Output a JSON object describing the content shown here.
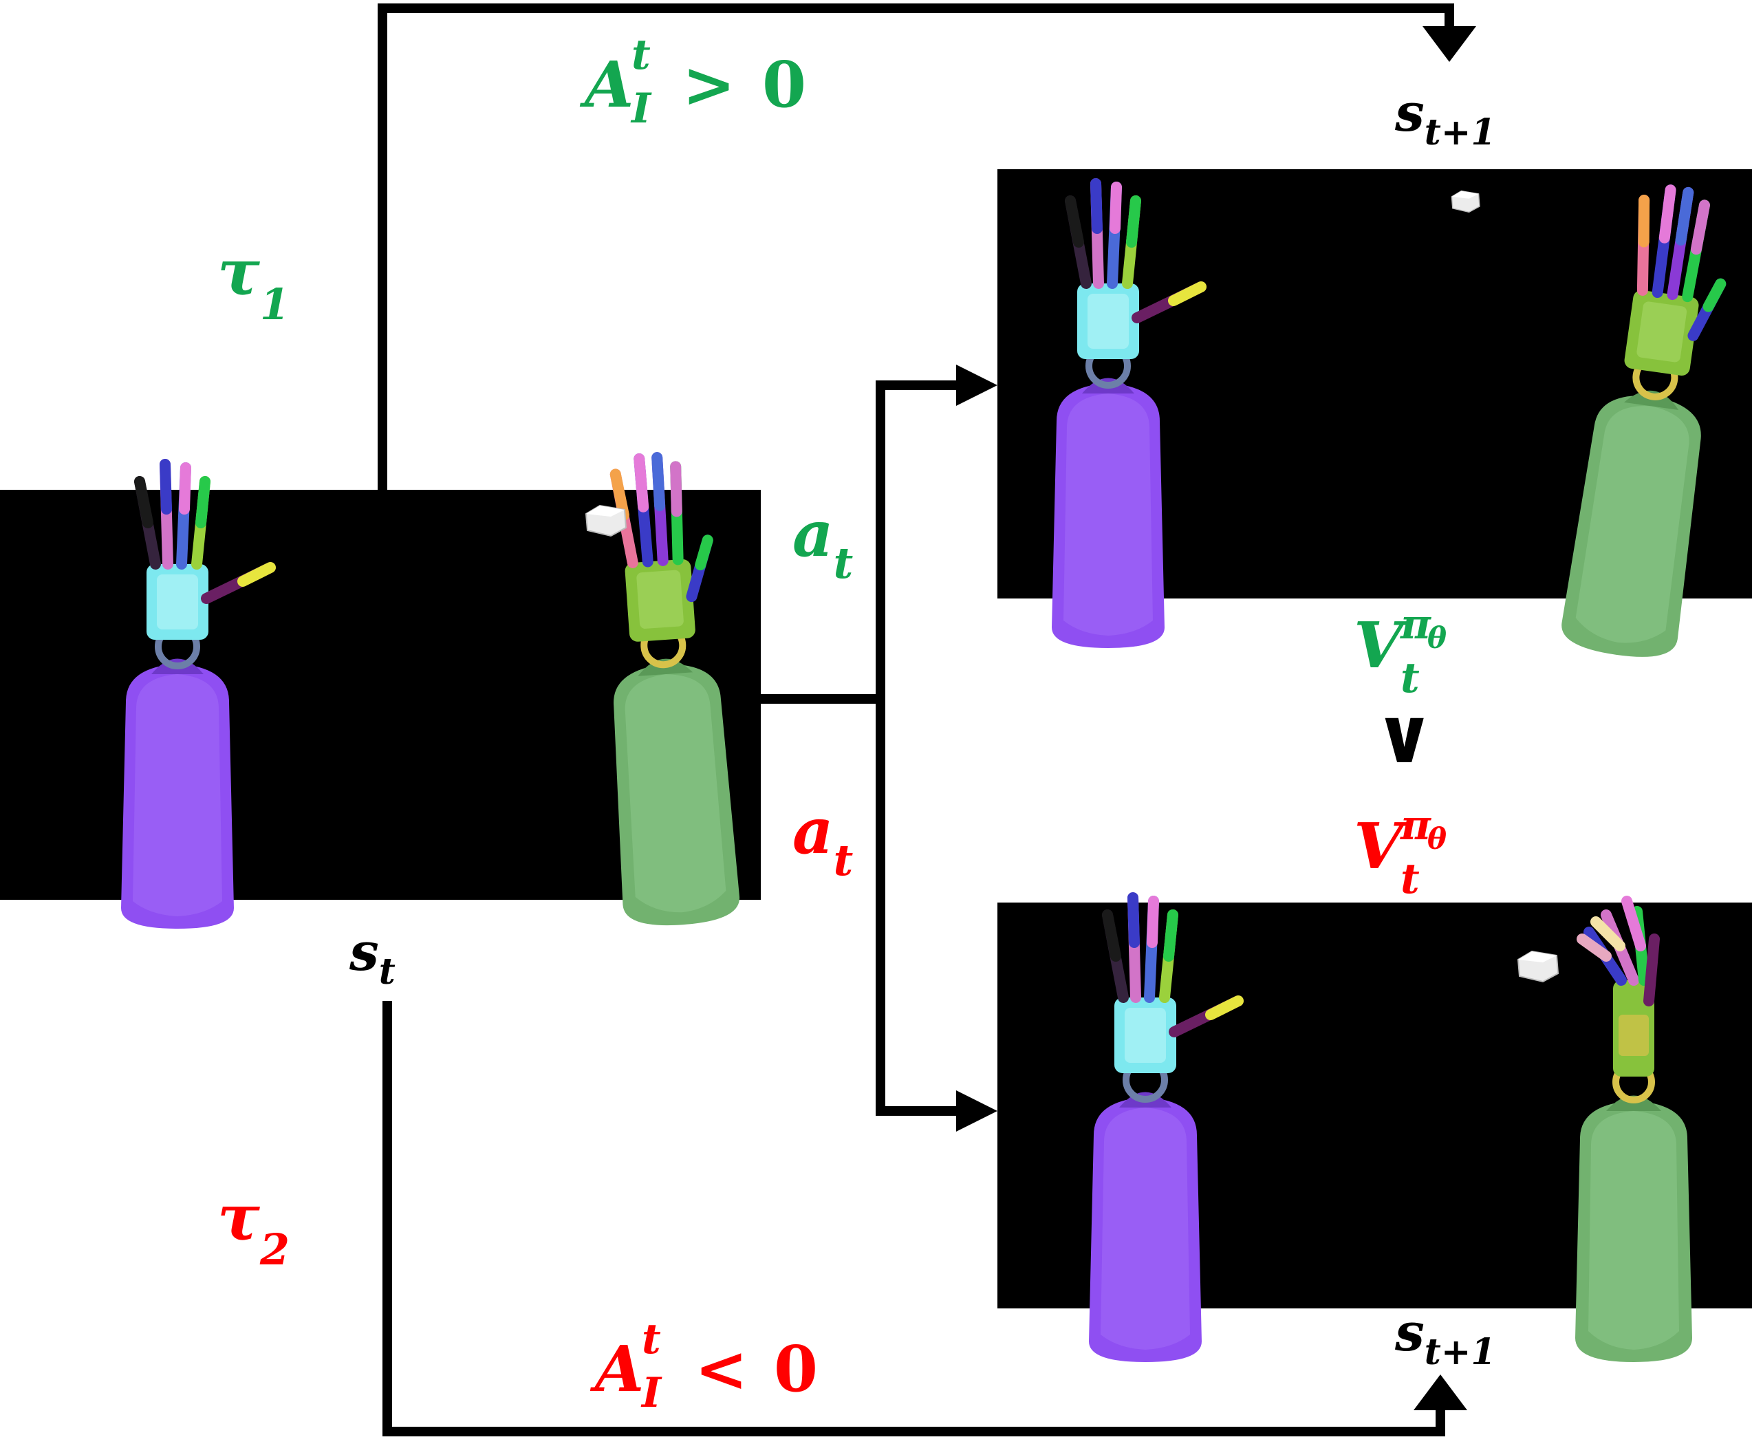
{
  "colors": {
    "good": "#13a650",
    "bad": "#ff0000",
    "ink": "#000000",
    "panel": "#000000",
    "left_body": "#8f4ff2",
    "right_body": "#72b26f",
    "left_palm": "#7de8ef",
    "right_palm": "#87c23c",
    "cube": "#ececec"
  },
  "panels": {
    "current": {
      "state_label": {
        "base": "s",
        "sub": "t"
      }
    },
    "next_good": {
      "state_label": {
        "base": "s",
        "sub": "t+1"
      }
    },
    "next_bad": {
      "state_label": {
        "base": "s",
        "sub": "t+1"
      }
    }
  },
  "trajectories": {
    "good": {
      "base": "τ",
      "sub": "1"
    },
    "bad": {
      "base": "τ",
      "sub": "2"
    }
  },
  "actions": {
    "good": {
      "base": "a",
      "sub": "t"
    },
    "bad": {
      "base": "a",
      "sub": "t"
    }
  },
  "advantages": {
    "good": {
      "base": "A",
      "sup": "t",
      "sub": "I",
      "op": ">",
      "rhs": "0"
    },
    "bad": {
      "base": "A",
      "sup": "t",
      "sub": "I",
      "op": "<",
      "rhs": "0"
    }
  },
  "values": {
    "good": {
      "base": "V",
      "sup": "π",
      "supsub": "θ",
      "sub": "t"
    },
    "bad": {
      "base": "V",
      "sup": "π",
      "supsub": "θ",
      "sub": "t"
    },
    "comparison": "∨"
  },
  "icons": {
    "left_robot": "purple-robot-hand-icon",
    "right_robot": "green-robot-hand-icon",
    "cube": "white-cube-icon"
  }
}
